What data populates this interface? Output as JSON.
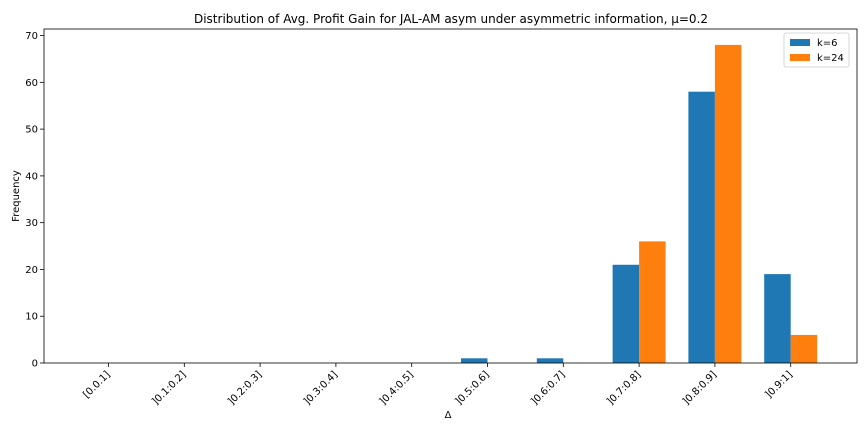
{
  "chart_data": {
    "type": "bar",
    "title": "Distribution of Avg. Profit Gain for JAL-AM asym under asymmetric information, μ=0.2",
    "xlabel": "Δ",
    "ylabel": "Frequency",
    "categories": [
      "[0.0.1]",
      "]0.1:0.2]",
      "]0.2:0.3]",
      "]0.3:0.4]",
      "]0.4:0.5]",
      "]0.5:0.6]",
      "]0.6:0.7]",
      "]0.7:0.8]",
      "]0.8:0.9]",
      "]0.9:1]"
    ],
    "series": [
      {
        "name": "k=6",
        "color": "#1f77b4",
        "values": [
          0,
          0,
          0,
          0,
          0,
          1,
          1,
          21,
          58,
          19
        ]
      },
      {
        "name": "k=24",
        "color": "#ff7f0e",
        "values": [
          0,
          0,
          0,
          0,
          0,
          0,
          0,
          26,
          68,
          6
        ]
      }
    ],
    "ylim": [
      0,
      71.4
    ],
    "yticks": [
      0,
      10,
      20,
      30,
      40,
      50,
      60,
      70
    ],
    "grid": false,
    "legend_position": "top-right"
  }
}
